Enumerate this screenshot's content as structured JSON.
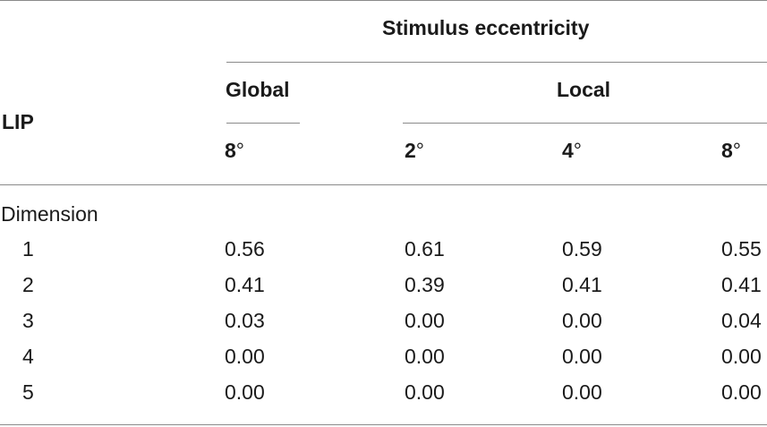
{
  "table": {
    "stub_header": "LIP",
    "spanner": "Stimulus eccentricity",
    "groups": {
      "global": "Global",
      "local": "Local"
    },
    "columns": [
      {
        "value": "8",
        "unit": "°"
      },
      {
        "value": "2",
        "unit": "°"
      },
      {
        "value": "4",
        "unit": "°"
      },
      {
        "value": "8",
        "unit": "°"
      }
    ],
    "section_label": "Dimension",
    "rows": [
      {
        "label": "1",
        "cells": [
          "0.56",
          "0.61",
          "0.59",
          "0.55"
        ]
      },
      {
        "label": "2",
        "cells": [
          "0.41",
          "0.39",
          "0.41",
          "0.41"
        ]
      },
      {
        "label": "3",
        "cells": [
          "0.03",
          "0.00",
          "0.00",
          "0.04"
        ]
      },
      {
        "label": "4",
        "cells": [
          "0.00",
          "0.00",
          "0.00",
          "0.00"
        ]
      },
      {
        "label": "5",
        "cells": [
          "0.00",
          "0.00",
          "0.00",
          "0.00"
        ]
      }
    ]
  }
}
